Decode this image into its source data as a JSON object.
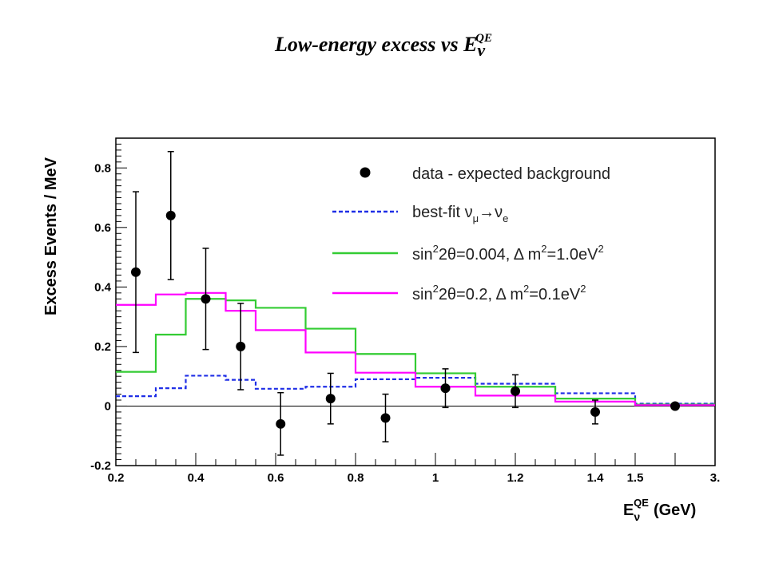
{
  "title": {
    "main": "Low-energy excess vs E",
    "sub": "ν",
    "sup": "QE"
  },
  "chart_data": {
    "type": "line",
    "ylabel": "Excess Events / MeV",
    "xlabel": {
      "main": "E",
      "sub": "ν",
      "sup": "QE",
      "unit": "(GeV)"
    },
    "xlim": [
      0.2,
      3.0
    ],
    "ylim": [
      -0.2,
      0.9
    ],
    "x_ticks": [
      {
        "v": 0.2,
        "label": "0.2"
      },
      {
        "v": 0.4,
        "label": "0.4"
      },
      {
        "v": 0.6,
        "label": "0.6"
      },
      {
        "v": 0.8,
        "label": "0.8"
      },
      {
        "v": 1.0,
        "label": "1"
      },
      {
        "v": 1.2,
        "label": "1.2"
      },
      {
        "v": 1.4,
        "label": "1.4"
      },
      {
        "v": 1.5,
        "label": "1.5"
      },
      {
        "v": 3.0,
        "label": "3."
      }
    ],
    "y_ticks": [
      {
        "v": -0.2,
        "label": "-0.2"
      },
      {
        "v": 0,
        "label": "0"
      },
      {
        "v": 0.2,
        "label": "0.2"
      },
      {
        "v": 0.4,
        "label": "0.4"
      },
      {
        "v": 0.6,
        "label": "0.6"
      },
      {
        "v": 0.8,
        "label": "0.8"
      }
    ],
    "bin_edges": [
      0.2,
      0.3,
      0.375,
      0.475,
      0.55,
      0.675,
      0.8,
      0.95,
      1.1,
      1.3,
      1.5,
      3.0
    ],
    "legend": {
      "data": "data - expected background",
      "bestfit": {
        "main": "best-fit ν",
        "sub1": "μ",
        "arrow": "→ν",
        "sub2": "e"
      },
      "green": {
        "a": "sin",
        "a_sup": "2",
        "b": "2θ=0.004, Δ m",
        "b_sup": "2",
        "c": "=1.0eV",
        "c_sup": "2"
      },
      "magenta": {
        "a": "sin",
        "a_sup": "2",
        "b": "2θ=0.2, Δ m",
        "b_sup": "2",
        "c": "=0.1eV",
        "c_sup": "2"
      }
    },
    "data_points": [
      {
        "x": 0.25,
        "y": 0.45,
        "err": 0.27
      },
      {
        "x": 0.3375,
        "y": 0.64,
        "err": 0.215
      },
      {
        "x": 0.425,
        "y": 0.36,
        "err": 0.17
      },
      {
        "x": 0.5125,
        "y": 0.2,
        "err": 0.145
      },
      {
        "x": 0.6125,
        "y": -0.06,
        "err": 0.105
      },
      {
        "x": 0.7375,
        "y": 0.025,
        "err": 0.085
      },
      {
        "x": 0.875,
        "y": -0.04,
        "err": 0.08
      },
      {
        "x": 1.025,
        "y": 0.06,
        "err": 0.065
      },
      {
        "x": 1.2,
        "y": 0.05,
        "err": 0.055
      },
      {
        "x": 1.4,
        "y": -0.02,
        "err": 0.04
      },
      {
        "x": 2.25,
        "y": 0.0,
        "err": 0.0
      }
    ],
    "series": [
      {
        "key": "bestfit",
        "color": "#1f2ee6",
        "dash": true,
        "values": [
          0.033,
          0.06,
          0.102,
          0.088,
          0.058,
          0.065,
          0.09,
          0.095,
          0.075,
          0.043,
          0.008
        ]
      },
      {
        "key": "green",
        "color": "#33cc33",
        "dash": false,
        "values": [
          0.115,
          0.24,
          0.36,
          0.355,
          0.33,
          0.26,
          0.175,
          0.11,
          0.065,
          0.025,
          0.005
        ]
      },
      {
        "key": "magenta",
        "color": "#ff00ff",
        "dash": false,
        "values": [
          0.34,
          0.375,
          0.38,
          0.32,
          0.255,
          0.18,
          0.112,
          0.065,
          0.035,
          0.015,
          0.003
        ]
      }
    ]
  }
}
